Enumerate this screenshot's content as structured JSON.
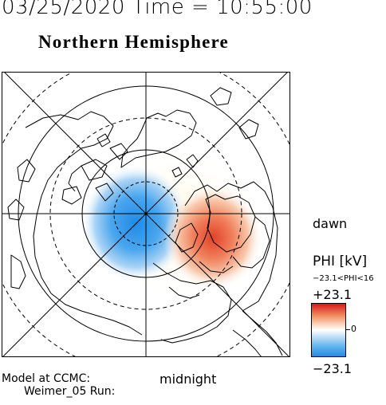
{
  "header": {
    "timestamp": "03/25/2020 Time = 10:55:00",
    "hemisphere_title": "Northern Hemisphere"
  },
  "map": {
    "orientation_labels": {
      "dawn": "dawn",
      "midnight": "midnight"
    }
  },
  "legend": {
    "quantity": "PHI [kV]",
    "range_text": "−23.1<PHI<16",
    "max_label": "+23.1",
    "zero_label": "0",
    "min_label": "−23.1",
    "colors": {
      "positive": "#d7191c",
      "zero": "#ffffff",
      "negative": "#1f8be6"
    }
  },
  "footer": {
    "model_line1": "Model at CCMC:",
    "model_line2": "Weimer_05 Run:"
  }
}
